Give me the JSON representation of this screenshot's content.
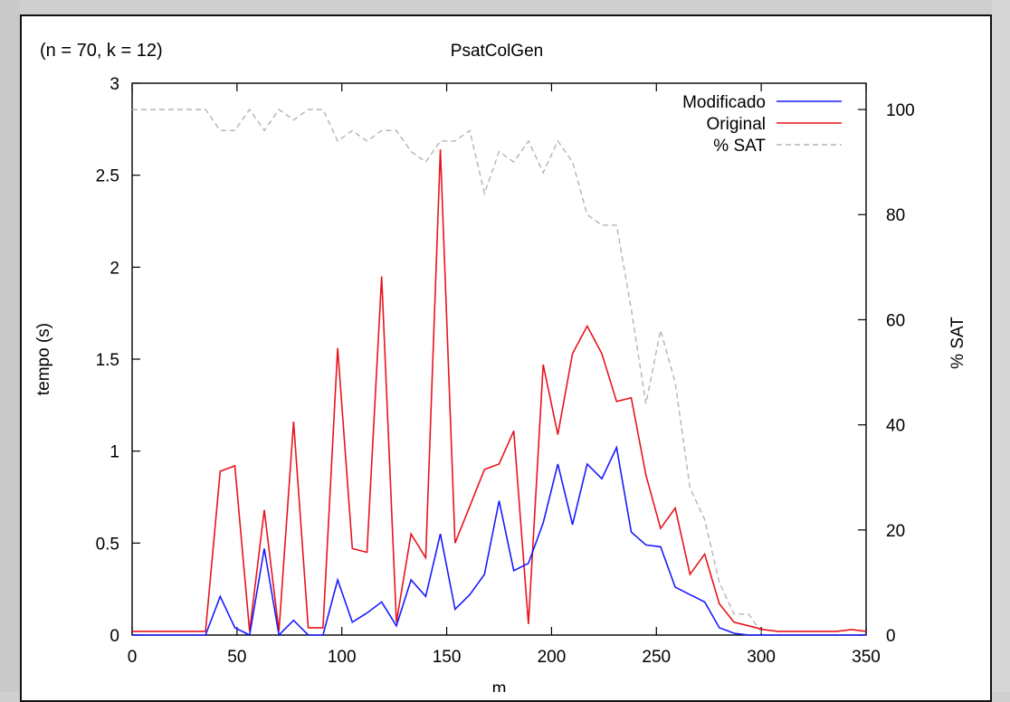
{
  "figure": {
    "corner_label": "(n = 70, k = 12)",
    "title": "PsatColGen"
  },
  "colors": {
    "modificado": "#1a1aff",
    "original": "#e8141d",
    "sat": "#b4b4b4"
  },
  "chart_data": {
    "type": "line",
    "title": "PsatColGen",
    "annotation": "(n = 70, k = 12)",
    "xlabel": "m",
    "ylabel": "tempo (s)",
    "y2label": "% SAT",
    "xlim": [
      0,
      350
    ],
    "ylim": [
      0,
      3
    ],
    "y2lim": [
      0,
      105
    ],
    "xticks": [
      "0",
      "50",
      "100",
      "150",
      "200",
      "250",
      "300",
      "350"
    ],
    "yticks": [
      "0",
      "0.5",
      "1",
      "1.5",
      "2",
      "2.5",
      "3"
    ],
    "y2ticks": [
      "0",
      "20",
      "40",
      "60",
      "80",
      "100"
    ],
    "legend_position": "top-right",
    "grid": false,
    "x": [
      0,
      7,
      14,
      21,
      28,
      35,
      42,
      49,
      56,
      63,
      70,
      77,
      84,
      91,
      98,
      105,
      112,
      119,
      126,
      133,
      140,
      147,
      154,
      161,
      168,
      175,
      182,
      189,
      196,
      203,
      210,
      217,
      224,
      231,
      238,
      245,
      252,
      259,
      266,
      273,
      280,
      287,
      294,
      301,
      308,
      315,
      322,
      329,
      336,
      343,
      350
    ],
    "series": [
      {
        "name": "Modificado",
        "axis": "left",
        "style": "solid",
        "color": "#1a1aff",
        "values": [
          0,
          0,
          0,
          0,
          0,
          0,
          0.21,
          0.04,
          0,
          0.47,
          0,
          0.08,
          0,
          0,
          0.3,
          0.07,
          0.12,
          0.18,
          0.05,
          0.3,
          0.21,
          0.55,
          0.14,
          0.22,
          0.33,
          0.73,
          0.35,
          0.39,
          0.61,
          0.93,
          0.6,
          0.93,
          0.85,
          1.02,
          0.56,
          0.49,
          0.48,
          0.26,
          0.22,
          0.18,
          0.04,
          0.01,
          0,
          0,
          0,
          0,
          0,
          0,
          0,
          0,
          0
        ]
      },
      {
        "name": "Original",
        "axis": "left",
        "style": "solid",
        "color": "#e8141d",
        "values": [
          0.02,
          0.02,
          0.02,
          0.02,
          0.02,
          0.02,
          0.89,
          0.92,
          0.02,
          0.68,
          0.02,
          1.16,
          0.04,
          0.04,
          1.56,
          0.47,
          0.45,
          1.95,
          0.07,
          0.55,
          0.42,
          2.64,
          0.5,
          0.7,
          0.9,
          0.93,
          1.11,
          0.06,
          1.47,
          1.09,
          1.53,
          1.68,
          1.53,
          1.27,
          1.29,
          0.87,
          0.58,
          0.69,
          0.33,
          0.44,
          0.17,
          0.07,
          0.05,
          0.03,
          0.02,
          0.02,
          0.02,
          0.02,
          0.02,
          0.03,
          0.02
        ]
      },
      {
        "name": "% SAT",
        "axis": "right",
        "style": "dashed",
        "color": "#b4b4b4",
        "values": [
          100,
          100,
          100,
          100,
          100,
          100,
          96,
          96,
          100,
          96,
          100,
          98,
          100,
          100,
          94,
          96,
          94,
          96,
          96,
          92,
          90,
          94,
          94,
          96,
          84,
          92,
          90,
          94,
          88,
          94,
          90,
          80,
          78,
          78,
          62,
          44,
          58,
          48,
          28,
          22,
          10,
          4,
          4,
          0,
          0,
          0,
          0,
          0,
          0,
          0,
          0
        ]
      }
    ]
  }
}
